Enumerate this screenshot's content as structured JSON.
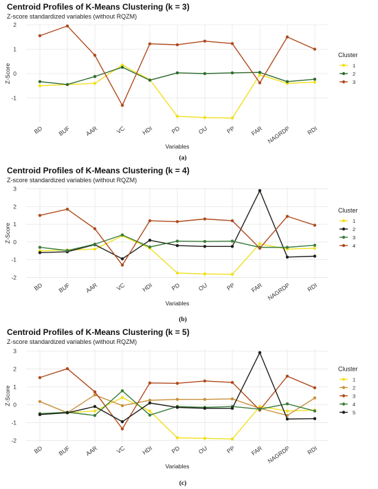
{
  "chart_data": [
    {
      "type": "line",
      "title": "Centroid Profiles of K-Means Clustering (k = 3)",
      "subtitle": "Z-score standardized variables (without RQZM)",
      "xlabel": "Variables",
      "ylabel": "Z-Score",
      "caption": "(a)",
      "ylim": [
        -2,
        2
      ],
      "yticks": [
        -1,
        0,
        1,
        2
      ],
      "categories": [
        "BD",
        "BUF",
        "AAR",
        "VC",
        "HDI",
        "PD",
        "OU",
        "PP",
        "FAR",
        "NAGRDP",
        "RDI"
      ],
      "legend_title": "Cluster",
      "grid": true,
      "legend_position": "right",
      "series": [
        {
          "name": "1",
          "color": "#f0e020",
          "values": [
            -0.5,
            -0.45,
            -0.4,
            0.35,
            -0.25,
            -1.75,
            -1.8,
            -1.82,
            -0.05,
            -0.4,
            -0.35
          ]
        },
        {
          "name": "2",
          "color": "#2e6b2e",
          "values": [
            -0.33,
            -0.45,
            -0.12,
            0.26,
            -0.27,
            0.03,
            0.0,
            0.03,
            0.05,
            -0.33,
            -0.23
          ]
        },
        {
          "name": "3",
          "color": "#b04a1e",
          "values": [
            1.55,
            1.95,
            0.75,
            -1.3,
            1.22,
            1.18,
            1.33,
            1.23,
            -0.38,
            1.5,
            1.0
          ]
        }
      ]
    },
    {
      "type": "line",
      "title": "Centroid Profiles of K-Means Clustering (k = 4)",
      "subtitle": "Z-score standardized variables (without RQZM)",
      "xlabel": "Variables",
      "ylabel": "Z-Score",
      "caption": "(b)",
      "ylim": [
        -2.1,
        3.1
      ],
      "yticks": [
        -2,
        -1,
        0,
        1,
        2,
        3
      ],
      "categories": [
        "BD",
        "BUF",
        "AAR",
        "VC",
        "HDI",
        "PD",
        "OU",
        "PP",
        "FAR",
        "NAGRDP",
        "RDI"
      ],
      "legend_title": "Cluster",
      "grid": true,
      "legend_position": "right",
      "series": [
        {
          "name": "1",
          "color": "#f0e020",
          "values": [
            -0.5,
            -0.45,
            -0.4,
            0.35,
            -0.35,
            -1.75,
            -1.8,
            -1.82,
            -0.1,
            -0.4,
            -0.35
          ]
        },
        {
          "name": "2",
          "color": "#1f1f1a",
          "values": [
            -0.6,
            -0.55,
            -0.15,
            -0.95,
            0.1,
            -0.2,
            -0.25,
            -0.25,
            2.9,
            -0.85,
            -0.8
          ]
        },
        {
          "name": "3",
          "color": "#3a7d3a",
          "values": [
            -0.3,
            -0.48,
            -0.12,
            0.4,
            -0.28,
            0.05,
            0.03,
            0.05,
            -0.3,
            -0.3,
            -0.18
          ]
        },
        {
          "name": "4",
          "color": "#b04a1e",
          "values": [
            1.5,
            1.85,
            0.75,
            -1.3,
            1.2,
            1.15,
            1.3,
            1.2,
            -0.35,
            1.45,
            0.95
          ]
        }
      ]
    },
    {
      "type": "line",
      "title": "Centroid Profiles of K-Means Clustering (k = 5)",
      "subtitle": "Z-score standardized variables (without RQZM)",
      "xlabel": "Variables",
      "ylabel": "Z-Score",
      "caption": "(c)",
      "ylim": [
        -2.1,
        3.1
      ],
      "yticks": [
        -2,
        -1,
        0,
        1,
        2,
        3
      ],
      "categories": [
        "BD",
        "BUF",
        "AAR",
        "VC",
        "HDI",
        "PD",
        "OU",
        "PP",
        "FAR",
        "NAGRDP",
        "RDI"
      ],
      "legend_title": "Cluster",
      "grid": true,
      "legend_position": "right",
      "series": [
        {
          "name": "1",
          "color": "#f0e020",
          "values": [
            -0.5,
            -0.45,
            -0.35,
            0.4,
            -0.35,
            -1.85,
            -1.88,
            -1.92,
            -0.1,
            -0.35,
            -0.3
          ]
        },
        {
          "name": "2",
          "color": "#c8903a",
          "values": [
            0.18,
            -0.45,
            0.55,
            -0.05,
            0.25,
            0.3,
            0.3,
            0.33,
            -0.2,
            -0.6,
            0.38
          ]
        },
        {
          "name": "3",
          "color": "#b04a1e",
          "values": [
            1.52,
            2.02,
            0.72,
            -1.35,
            1.22,
            1.2,
            1.33,
            1.25,
            -0.3,
            1.6,
            0.95
          ]
        },
        {
          "name": "4",
          "color": "#3a7d3a",
          "values": [
            -0.5,
            -0.42,
            -0.6,
            0.78,
            -0.58,
            -0.1,
            -0.15,
            -0.1,
            -0.25,
            0.05,
            -0.35
          ]
        },
        {
          "name": "5",
          "color": "#1f1f1a",
          "values": [
            -0.55,
            -0.45,
            -0.1,
            -0.95,
            0.1,
            -0.15,
            -0.2,
            -0.2,
            2.92,
            -0.8,
            -0.78
          ]
        }
      ]
    }
  ]
}
